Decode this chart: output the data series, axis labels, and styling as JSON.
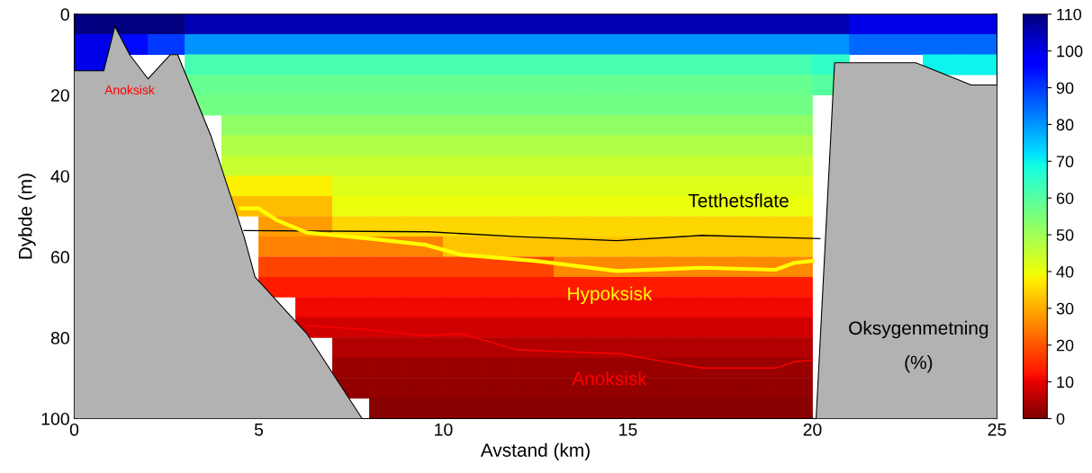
{
  "chart_data": {
    "type": "scatter",
    "xlabel": "Avstand (km)",
    "ylabel": "Dybde (m)",
    "clim": [
      0,
      110
    ],
    "cticks": [
      0,
      10,
      20,
      30,
      40,
      50,
      60,
      70,
      80,
      90,
      100,
      110
    ],
    "xlim": [
      0,
      25
    ],
    "xticks": [
      0,
      5,
      10,
      15,
      20,
      25
    ],
    "ylim": [
      100,
      0
    ],
    "yticks": [
      0,
      20,
      40,
      60,
      80,
      100
    ],
    "series": [
      {
        "marker": "square",
        "x": [
          0.5,
          1.5,
          2.5
        ],
        "values": [
          2.5,
          2.5,
          2.5
        ],
        "cvalues": [
          110,
          110,
          110
        ]
      },
      {
        "marker": "square",
        "x": [
          3.5,
          4.5,
          5.5,
          6.5,
          7.5,
          8.5,
          9.5,
          10.5,
          11.5,
          12.5,
          13.5,
          14.5,
          15.5,
          16.5,
          17.5,
          18.5,
          19.5,
          20.5
        ],
        "values": [
          2.5,
          2.5,
          2.5,
          2.5,
          2.5,
          2.5,
          2.5,
          2.5,
          2.5,
          2.5,
          2.5,
          2.5,
          2.5,
          2.5,
          2.5,
          2.5,
          2.5,
          2.5
        ],
        "cvalues": [
          105,
          105,
          105,
          105,
          105,
          105,
          105,
          105,
          105,
          105,
          105,
          105,
          105,
          105,
          105,
          105,
          105,
          105
        ]
      },
      {
        "marker": "square",
        "x": [
          21.5,
          22.5,
          23.5,
          24.5
        ],
        "values": [
          2.5,
          2.5,
          2.5,
          2.5
        ],
        "cvalues": [
          100,
          100,
          100,
          100
        ]
      },
      {
        "marker": "square",
        "x": [
          0.5
        ],
        "values": [
          7.5
        ],
        "cvalues": [
          100
        ]
      },
      {
        "marker": "square",
        "x": [
          1.5
        ],
        "values": [
          7.5
        ],
        "cvalues": [
          95
        ]
      },
      {
        "marker": "square",
        "x": [
          2.5
        ],
        "values": [
          7.5
        ],
        "cvalues": [
          90
        ]
      },
      {
        "marker": "square",
        "x": [
          3.5,
          4.5,
          5.5,
          6.5,
          7.5,
          8.5,
          9.5,
          10.5,
          11.5,
          12.5,
          13.5,
          14.5,
          15.5,
          16.5,
          17.5,
          18.5,
          19.5,
          20.5
        ],
        "values": [
          7.5,
          7.5,
          7.5,
          7.5,
          7.5,
          7.5,
          7.5,
          7.5,
          7.5,
          7.5,
          7.5,
          7.5,
          7.5,
          7.5,
          7.5,
          7.5,
          7.5,
          7.5
        ],
        "cvalues": [
          80,
          80,
          80,
          80,
          80,
          80,
          80,
          80,
          80,
          80,
          80,
          80,
          80,
          80,
          80,
          80,
          80,
          80
        ]
      },
      {
        "marker": "square",
        "x": [
          21.5,
          22.5,
          23.5,
          24.5
        ],
        "values": [
          7.5,
          7.5,
          7.5,
          7.5
        ],
        "cvalues": [
          85,
          85,
          85,
          85
        ]
      },
      {
        "marker": "square",
        "x": [
          0.5
        ],
        "values": [
          12.5
        ],
        "cvalues": [
          100
        ]
      },
      {
        "marker": "square",
        "x": [
          3.5,
          4.5,
          5.5,
          6.5,
          7.5,
          8.5,
          9.5,
          10.5,
          11.5,
          12.5,
          13.5,
          14.5,
          15.5,
          16.5,
          17.5,
          18.5,
          19.5
        ],
        "values": [
          12.5,
          12.5,
          12.5,
          12.5,
          12.5,
          12.5,
          12.5,
          12.5,
          12.5,
          12.5,
          12.5,
          12.5,
          12.5,
          12.5,
          12.5,
          12.5,
          12.5
        ],
        "cvalues": [
          62,
          62,
          62,
          62,
          62,
          62,
          62,
          62,
          62,
          62,
          62,
          62,
          62,
          62,
          62,
          62,
          62
        ]
      },
      {
        "marker": "square",
        "x": [
          20.5
        ],
        "values": [
          12.5
        ],
        "cvalues": [
          65
        ]
      },
      {
        "marker": "square",
        "x": [
          23.5,
          24.5
        ],
        "values": [
          12.5,
          12.5
        ],
        "cvalues": [
          70,
          70
        ]
      },
      {
        "marker": "square",
        "x": [
          3.5,
          4.5,
          5.5,
          6.5,
          7.5,
          8.5,
          9.5,
          10.5,
          11.5,
          12.5,
          13.5,
          14.5,
          15.5,
          16.5,
          17.5,
          18.5,
          19.5
        ],
        "values": [
          17.5,
          17.5,
          17.5,
          17.5,
          17.5,
          17.5,
          17.5,
          17.5,
          17.5,
          17.5,
          17.5,
          17.5,
          17.5,
          17.5,
          17.5,
          17.5,
          17.5
        ],
        "cvalues": [
          58,
          58,
          58,
          58,
          58,
          58,
          58,
          58,
          58,
          58,
          58,
          58,
          58,
          58,
          58,
          58,
          58
        ]
      },
      {
        "marker": "square",
        "x": [
          20.5
        ],
        "values": [
          17.5
        ],
        "cvalues": [
          60
        ]
      },
      {
        "marker": "square",
        "x": [
          3.5,
          4.5,
          5.5,
          6.5,
          7.5,
          8.5,
          9.5,
          10.5,
          11.5,
          12.5,
          13.5,
          14.5,
          15.5,
          16.5,
          17.5,
          18.5,
          19.5
        ],
        "values": [
          22.5,
          22.5,
          22.5,
          22.5,
          22.5,
          22.5,
          22.5,
          22.5,
          22.5,
          22.5,
          22.5,
          22.5,
          22.5,
          22.5,
          22.5,
          22.5,
          22.5
        ],
        "cvalues": [
          56,
          56,
          56,
          56,
          56,
          56,
          56,
          56,
          56,
          56,
          56,
          56,
          56,
          56,
          56,
          56,
          56
        ]
      },
      {
        "marker": "square",
        "x": [
          4.5,
          5.5,
          6.5,
          7.5,
          8.5,
          9.5,
          10.5,
          11.5,
          12.5,
          13.5,
          14.5,
          15.5,
          16.5,
          17.5,
          18.5,
          19.5
        ],
        "values": [
          27.5,
          27.5,
          27.5,
          27.5,
          27.5,
          27.5,
          27.5,
          27.5,
          27.5,
          27.5,
          27.5,
          27.5,
          27.5,
          27.5,
          27.5,
          27.5
        ],
        "cvalues": [
          52,
          52,
          52,
          52,
          52,
          52,
          52,
          52,
          52,
          52,
          52,
          52,
          52,
          52,
          52,
          52
        ]
      },
      {
        "marker": "square",
        "x": [
          4.5,
          5.5,
          6.5,
          7.5,
          8.5,
          9.5,
          10.5,
          11.5,
          12.5,
          13.5,
          14.5,
          15.5,
          16.5,
          17.5,
          18.5,
          19.5
        ],
        "values": [
          32.5,
          32.5,
          32.5,
          32.5,
          32.5,
          32.5,
          32.5,
          32.5,
          32.5,
          32.5,
          32.5,
          32.5,
          32.5,
          32.5,
          32.5,
          32.5
        ],
        "cvalues": [
          48,
          48,
          48,
          48,
          48,
          48,
          48,
          48,
          48,
          48,
          48,
          48,
          48,
          48,
          48,
          48
        ]
      },
      {
        "marker": "square",
        "x": [
          4.5,
          5.5,
          6.5,
          7.5,
          8.5,
          9.5,
          10.5,
          11.5,
          12.5,
          13.5,
          14.5,
          15.5,
          16.5,
          17.5,
          18.5,
          19.5
        ],
        "values": [
          37.5,
          37.5,
          37.5,
          37.5,
          37.5,
          37.5,
          37.5,
          37.5,
          37.5,
          37.5,
          37.5,
          37.5,
          37.5,
          37.5,
          37.5,
          37.5
        ],
        "cvalues": [
          45,
          45,
          45,
          45,
          45,
          45,
          45,
          45,
          45,
          45,
          45,
          45,
          45,
          45,
          45,
          45
        ]
      },
      {
        "marker": "square",
        "x": [
          4.5,
          5.5,
          6.5
        ],
        "values": [
          42.5,
          42.5,
          42.5
        ],
        "cvalues": [
          38,
          38,
          38
        ]
      },
      {
        "marker": "square",
        "x": [
          7.5,
          8.5,
          9.5,
          10.5,
          11.5,
          12.5,
          13.5,
          14.5,
          15.5,
          16.5,
          17.5,
          18.5,
          19.5
        ],
        "values": [
          42.5,
          42.5,
          42.5,
          42.5,
          42.5,
          42.5,
          42.5,
          42.5,
          42.5,
          42.5,
          42.5,
          42.5,
          42.5
        ],
        "cvalues": [
          42,
          42,
          42,
          42,
          42,
          42,
          42,
          42,
          42,
          42,
          42,
          42,
          42
        ]
      },
      {
        "marker": "square",
        "x": [
          4.5,
          5.5,
          6.5
        ],
        "values": [
          47.5,
          47.5,
          47.5
        ],
        "cvalues": [
          32,
          32,
          32
        ]
      },
      {
        "marker": "square",
        "x": [
          7.5,
          8.5,
          9.5,
          10.5,
          11.5,
          12.5,
          13.5,
          14.5,
          15.5,
          16.5,
          17.5,
          18.5,
          19.5
        ],
        "values": [
          47.5,
          47.5,
          47.5,
          47.5,
          47.5,
          47.5,
          47.5,
          47.5,
          47.5,
          47.5,
          47.5,
          47.5,
          47.5
        ],
        "cvalues": [
          40,
          40,
          40,
          40,
          40,
          40,
          40,
          40,
          40,
          40,
          40,
          40,
          40
        ]
      },
      {
        "marker": "square",
        "x": [
          5.5,
          6.5
        ],
        "values": [
          52.5,
          52.5
        ],
        "cvalues": [
          28,
          28
        ]
      },
      {
        "marker": "square",
        "x": [
          7.5,
          8.5,
          9.5,
          10.5,
          11.5,
          12.5,
          13.5,
          14.5,
          15.5,
          16.5,
          17.5,
          18.5,
          19.5
        ],
        "values": [
          52.5,
          52.5,
          52.5,
          52.5,
          52.5,
          52.5,
          52.5,
          52.5,
          52.5,
          52.5,
          52.5,
          52.5,
          52.5
        ],
        "cvalues": [
          35,
          35,
          35,
          35,
          35,
          35,
          35,
          35,
          35,
          35,
          35,
          35,
          35
        ]
      },
      {
        "marker": "square",
        "x": [
          5.5,
          6.5,
          7.5,
          8.5,
          9.5
        ],
        "values": [
          57.5,
          57.5,
          57.5,
          57.5,
          57.5
        ],
        "cvalues": [
          25,
          25,
          25,
          25,
          25
        ]
      },
      {
        "marker": "square",
        "x": [
          10.5,
          11.5,
          12.5,
          13.5,
          14.5,
          15.5,
          16.5,
          17.5,
          18.5,
          19.5
        ],
        "values": [
          57.5,
          57.5,
          57.5,
          57.5,
          57.5,
          57.5,
          57.5,
          57.5,
          57.5,
          57.5
        ],
        "cvalues": [
          33,
          33,
          33,
          33,
          33,
          33,
          33,
          33,
          33,
          33
        ]
      },
      {
        "marker": "square",
        "x": [
          5.5,
          6.5,
          7.5,
          8.5,
          9.5,
          10.5,
          11.5,
          12.5
        ],
        "values": [
          62.5,
          62.5,
          62.5,
          62.5,
          62.5,
          62.5,
          62.5,
          62.5
        ],
        "cvalues": [
          18,
          18,
          18,
          18,
          18,
          18,
          18,
          18
        ]
      },
      {
        "marker": "square",
        "x": [
          13.5,
          14.5,
          15.5,
          16.5,
          17.5,
          18.5,
          19.5
        ],
        "values": [
          62.5,
          62.5,
          62.5,
          62.5,
          62.5,
          62.5,
          62.5
        ],
        "cvalues": [
          26,
          26,
          26,
          26,
          26,
          26,
          26
        ]
      },
      {
        "marker": "square",
        "x": [
          5.5,
          6.5,
          7.5,
          8.5,
          9.5,
          10.5,
          11.5,
          12.5,
          13.5,
          14.5,
          15.5,
          16.5,
          17.5,
          18.5,
          19.5
        ],
        "values": [
          67.5,
          67.5,
          67.5,
          67.5,
          67.5,
          67.5,
          67.5,
          67.5,
          67.5,
          67.5,
          67.5,
          67.5,
          67.5,
          67.5,
          67.5
        ],
        "cvalues": [
          13,
          13,
          13,
          13,
          13,
          13,
          13,
          13,
          13,
          13,
          13,
          13,
          13,
          13,
          13
        ]
      },
      {
        "marker": "square",
        "x": [
          6.5,
          7.5,
          8.5,
          9.5,
          10.5,
          11.5,
          12.5,
          13.5,
          14.5,
          15.5,
          16.5,
          17.5,
          18.5,
          19.5
        ],
        "values": [
          72.5,
          72.5,
          72.5,
          72.5,
          72.5,
          72.5,
          72.5,
          72.5,
          72.5,
          72.5,
          72.5,
          72.5,
          72.5,
          72.5
        ],
        "cvalues": [
          11,
          11,
          11,
          11,
          11,
          11,
          11,
          11,
          11,
          11,
          11,
          11,
          11,
          11
        ]
      },
      {
        "marker": "square",
        "x": [
          6.5,
          7.5,
          8.5,
          9.5,
          10.5,
          11.5,
          12.5,
          13.5,
          14.5,
          15.5,
          16.5,
          17.5,
          18.5,
          19.5
        ],
        "values": [
          77.5,
          77.5,
          77.5,
          77.5,
          77.5,
          77.5,
          77.5,
          77.5,
          77.5,
          77.5,
          77.5,
          77.5,
          77.5,
          77.5
        ],
        "cvalues": [
          8,
          8,
          8,
          8,
          8,
          8,
          8,
          8,
          8,
          8,
          8,
          8,
          8,
          8
        ]
      },
      {
        "marker": "square",
        "x": [
          7.5,
          8.5,
          9.5,
          10.5,
          11.5,
          12.5,
          13.5,
          14.5,
          15.5,
          16.5,
          17.5,
          18.5,
          19.5
        ],
        "values": [
          82.5,
          82.5,
          82.5,
          82.5,
          82.5,
          82.5,
          82.5,
          82.5,
          82.5,
          82.5,
          82.5,
          82.5,
          82.5
        ],
        "cvalues": [
          5,
          5,
          5,
          5,
          5,
          5,
          5,
          5,
          5,
          5,
          5,
          5,
          5
        ]
      },
      {
        "marker": "square",
        "x": [
          7.5,
          8.5,
          9.5,
          10.5,
          11.5,
          12.5,
          13.5,
          14.5,
          15.5,
          16.5,
          17.5,
          18.5,
          19.5
        ],
        "values": [
          87.5,
          87.5,
          87.5,
          87.5,
          87.5,
          87.5,
          87.5,
          87.5,
          87.5,
          87.5,
          87.5,
          87.5,
          87.5
        ],
        "cvalues": [
          3,
          3,
          3,
          3,
          3,
          3,
          3,
          3,
          3,
          3,
          3,
          3,
          3
        ]
      },
      {
        "marker": "square",
        "x": [
          7.5,
          8.5,
          9.5,
          10.5,
          11.5,
          12.5,
          13.5,
          14.5,
          15.5,
          16.5,
          17.5,
          18.5,
          19.5
        ],
        "values": [
          92.5,
          92.5,
          92.5,
          92.5,
          92.5,
          92.5,
          92.5,
          92.5,
          92.5,
          92.5,
          92.5,
          92.5,
          92.5
        ],
        "cvalues": [
          2,
          2,
          2,
          2,
          2,
          2,
          2,
          2,
          2,
          2,
          2,
          2,
          2
        ]
      },
      {
        "marker": "square",
        "x": [
          8.5,
          9.5,
          10.5,
          11.5,
          12.5,
          13.5,
          14.5,
          15.5,
          16.5,
          17.5,
          18.5,
          19.5
        ],
        "values": [
          97.5,
          97.5,
          97.5,
          97.5,
          97.5,
          97.5,
          97.5,
          97.5,
          97.5,
          97.5,
          97.5,
          97.5
        ],
        "cvalues": [
          1,
          1,
          1,
          1,
          1,
          1,
          1,
          1,
          1,
          1,
          1,
          1
        ]
      },
      {
        "type": "line",
        "color": "#000000",
        "x": [
          0,
          0.8,
          1.1,
          1.5,
          2,
          2.6,
          2.8,
          3.7,
          4.6,
          4.9,
          6.3,
          7.8,
          20.1,
          20.6,
          22.8,
          24.3,
          25
        ],
        "values": [
          14,
          14,
          3,
          10,
          16,
          10,
          10,
          30,
          55,
          65,
          79,
          100,
          100,
          12,
          12,
          17.5,
          17.5
        ],
        "lower": [
          14,
          14,
          3,
          10,
          16,
          10,
          10,
          30,
          55,
          65,
          79,
          100,
          100,
          12,
          12,
          17.5,
          17.5
        ],
        "upper": [
          100,
          100,
          100,
          100,
          100,
          100,
          100,
          100,
          100,
          100,
          100,
          100,
          100,
          100,
          100,
          100,
          100
        ]
      },
      {
        "type": "line",
        "color": "#000000",
        "x": [
          4.6,
          9.6,
          12,
          14.7,
          17,
          20.2
        ],
        "values": [
          53.5,
          53.8,
          55,
          56,
          54.7,
          55.5
        ]
      },
      {
        "type": "line",
        "color": "#ffff00",
        "x": [
          4.5,
          5,
          5.5,
          6.3,
          8,
          9.5,
          10.5,
          12.5,
          14.7,
          17,
          19,
          19.5,
          20
        ],
        "values": [
          48,
          48,
          51,
          54,
          55.5,
          57,
          59.5,
          61,
          63.5,
          62.7,
          63.2,
          61.5,
          61
        ]
      },
      {
        "type": "line",
        "color": "#ff0000",
        "x": [
          6.3,
          8,
          9.5,
          10.5,
          12,
          14.8,
          17,
          19,
          19.5,
          20
        ],
        "values": [
          77,
          78,
          79.5,
          79,
          83,
          84,
          87.5,
          87.5,
          86,
          85.5
        ]
      }
    ],
    "annotations": [
      "Anoksisk",
      "Tetthetsflate",
      "Hypoksisk",
      "Anoksisk",
      "Oksygenmetning",
      "(%)"
    ],
    "grid": false
  }
}
